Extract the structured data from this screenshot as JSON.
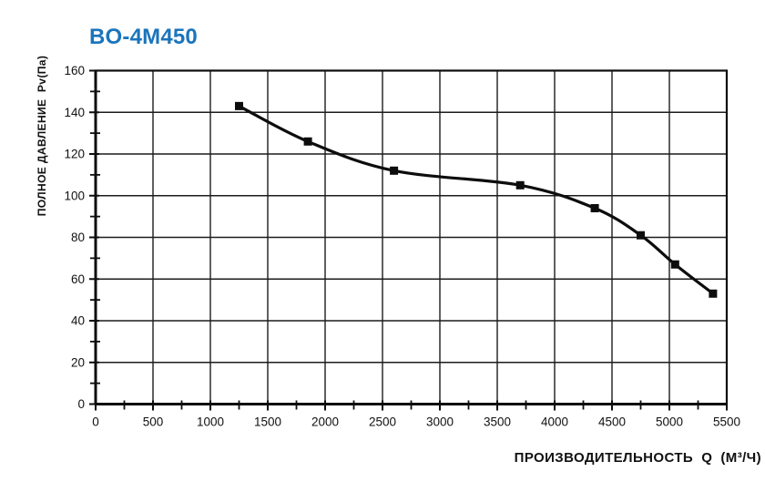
{
  "page": {
    "background": "#ffffff"
  },
  "header": {
    "title": "BO-4M450",
    "title_color": "#1b75bc"
  },
  "chart_data": {
    "type": "line",
    "title": "BO-4M450",
    "xlabel": "ПРОИЗВОДИТЕЛЬНОСТЬ  Q  (М³/Ч)",
    "ylabel": "ПОЛНОЕ ДАВЛЕНИЕ  Pv(Па)",
    "xlim": [
      0,
      5500
    ],
    "ylim": [
      0,
      160
    ],
    "x_ticks": [
      0,
      500,
      1000,
      1500,
      2000,
      2500,
      3000,
      3500,
      4000,
      4500,
      5000,
      5500
    ],
    "y_ticks": [
      0,
      20,
      40,
      60,
      80,
      100,
      120,
      140,
      160
    ],
    "x_minor_step": 250,
    "y_minor_step": 10,
    "grid": true,
    "legend": "none",
    "marker": "filled-square",
    "line_color": "#0d0d0d",
    "grid_color": "#1c1c1c",
    "axis_color": "#0d0d0d",
    "series": [
      {
        "name": "BO-4M450",
        "points": [
          [
            1250,
            143
          ],
          [
            1850,
            126
          ],
          [
            2600,
            112
          ],
          [
            3700,
            105
          ],
          [
            4350,
            94
          ],
          [
            4750,
            81
          ],
          [
            5050,
            67
          ],
          [
            5380,
            53
          ]
        ]
      }
    ]
  }
}
